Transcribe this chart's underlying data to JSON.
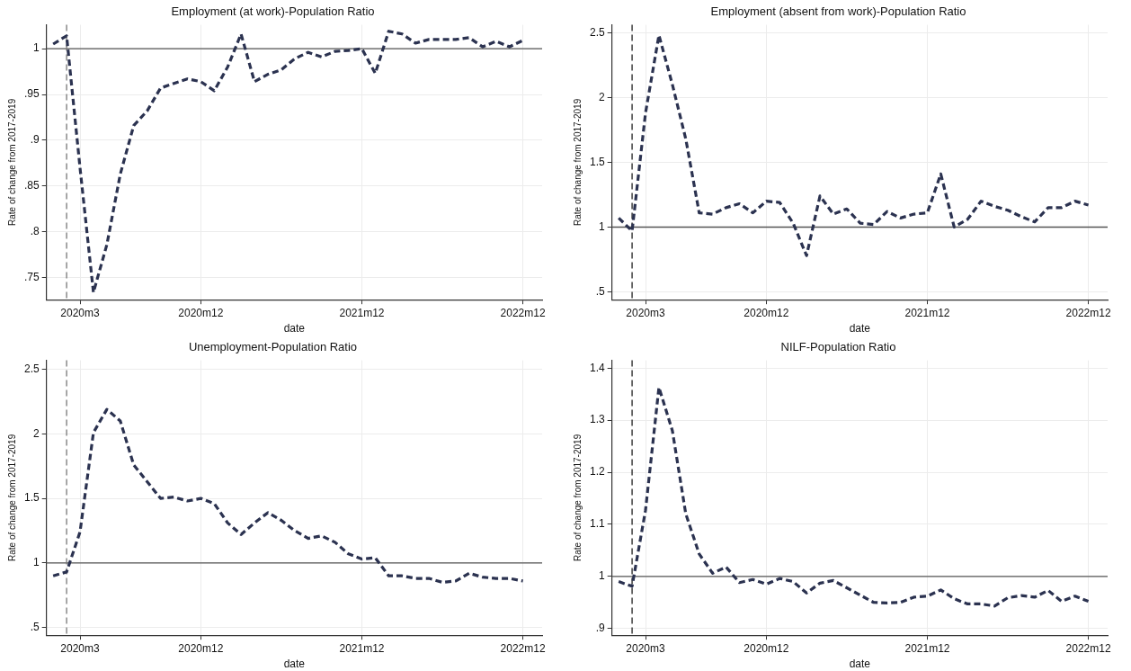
{
  "chart_data": [
    {
      "type": "line",
      "title": "Employment (at work)-Population Ratio",
      "xlabel": "date",
      "ylabel": "Rate of change from 2017-2019",
      "grid": true,
      "line_style": "dashed",
      "marker": "none",
      "x": [
        "2020-01",
        "2020-02",
        "2020-03",
        "2020-04",
        "2020-05",
        "2020-06",
        "2020-07",
        "2020-08",
        "2020-09",
        "2020-10",
        "2020-11",
        "2020-12",
        "2021-01",
        "2021-02",
        "2021-03",
        "2021-04",
        "2021-05",
        "2021-06",
        "2021-07",
        "2021-08",
        "2021-09",
        "2021-10",
        "2021-11",
        "2021-12",
        "2022-01",
        "2022-02",
        "2022-03",
        "2022-04",
        "2022-05",
        "2022-06",
        "2022-07",
        "2022-08",
        "2022-09",
        "2022-10",
        "2022-11",
        "2022-12"
      ],
      "series": [
        {
          "color": "#2b3250",
          "values": [
            1.005,
            1.014,
            0.87,
            0.734,
            0.786,
            0.863,
            0.916,
            0.932,
            0.957,
            0.962,
            0.967,
            0.964,
            0.954,
            0.98,
            1.016,
            0.964,
            0.972,
            0.977,
            0.989,
            0.996,
            0.991,
            0.997,
            0.998,
            1.0,
            0.973,
            1.019,
            1.016,
            1.006,
            1.01,
            1.01,
            1.01,
            1.012,
            1.002,
            1.008,
            1.002,
            1.009
          ]
        }
      ],
      "xlim": [
        "2019-12-16",
        "2023-01-14"
      ],
      "xticks": [
        {
          "value": "2020-03",
          "label": "2020m3"
        },
        {
          "value": "2020-12",
          "label": "2020m12"
        },
        {
          "value": "2021-12",
          "label": "2021m12"
        },
        {
          "value": "2022-12",
          "label": "2022m12"
        }
      ],
      "ylim": [
        0.726,
        1.026
      ],
      "yticks": [
        {
          "value": 0.75,
          "label": ".75"
        },
        {
          "value": 0.8,
          "label": ".8"
        },
        {
          "value": 0.85,
          "label": ".85"
        },
        {
          "value": 0.9,
          "label": ".9"
        },
        {
          "value": 0.95,
          "label": ".95"
        },
        1
      ],
      "ref_lines": [
        {
          "axis": "y",
          "value": 1,
          "color": "#555555",
          "line_style": "solid"
        },
        {
          "axis": "x",
          "value": "2020-02",
          "color": "#777777",
          "line_style": "dashed"
        }
      ]
    },
    {
      "type": "line",
      "title": "Employment (absent from work)-Population Ratio",
      "xlabel": "date",
      "ylabel": "Rate of change from 2017-2019",
      "grid": true,
      "line_style": "dashed",
      "marker": "none",
      "x": [
        "2020-01",
        "2020-02",
        "2020-03",
        "2020-04",
        "2020-05",
        "2020-06",
        "2020-07",
        "2020-08",
        "2020-09",
        "2020-10",
        "2020-11",
        "2020-12",
        "2021-01",
        "2021-02",
        "2021-03",
        "2021-04",
        "2021-05",
        "2021-06",
        "2021-07",
        "2021-08",
        "2021-09",
        "2021-10",
        "2021-11",
        "2021-12",
        "2022-01",
        "2022-02",
        "2022-03",
        "2022-04",
        "2022-05",
        "2022-06",
        "2022-07",
        "2022-08",
        "2022-09",
        "2022-10",
        "2022-11",
        "2022-12"
      ],
      "series": [
        {
          "color": "#2b3250",
          "values": [
            1.07,
            0.97,
            1.88,
            2.48,
            2.1,
            1.68,
            1.11,
            1.1,
            1.15,
            1.18,
            1.11,
            1.2,
            1.19,
            1.03,
            0.78,
            1.24,
            1.1,
            1.14,
            1.03,
            1.02,
            1.12,
            1.07,
            1.1,
            1.11,
            1.41,
            1.0,
            1.06,
            1.2,
            1.16,
            1.13,
            1.08,
            1.04,
            1.15,
            1.15,
            1.2,
            1.17
          ]
        }
      ],
      "xlim": [
        "2019-12-16",
        "2023-01-14"
      ],
      "xticks": [
        {
          "value": "2020-03",
          "label": "2020m3"
        },
        {
          "value": "2020-12",
          "label": "2020m12"
        },
        {
          "value": "2021-12",
          "label": "2021m12"
        },
        {
          "value": "2022-12",
          "label": "2022m12"
        }
      ],
      "ylim": [
        0.44,
        2.56
      ],
      "yticks": [
        {
          "value": 0.5,
          "label": ".5"
        },
        1,
        1.5,
        2,
        2.5
      ],
      "ref_lines": [
        {
          "axis": "y",
          "value": 1,
          "color": "#555555",
          "line_style": "solid"
        },
        {
          "axis": "x",
          "value": "2020-02",
          "color": "#222222",
          "line_style": "dashed"
        }
      ]
    },
    {
      "type": "line",
      "title": "Unemployment-Population Ratio",
      "xlabel": "date",
      "ylabel": "Rate of change from 2017-2019",
      "grid": true,
      "line_style": "dashed",
      "marker": "none",
      "x": [
        "2020-01",
        "2020-02",
        "2020-03",
        "2020-04",
        "2020-05",
        "2020-06",
        "2020-07",
        "2020-08",
        "2020-09",
        "2020-10",
        "2020-11",
        "2020-12",
        "2021-01",
        "2021-02",
        "2021-03",
        "2021-04",
        "2021-05",
        "2021-06",
        "2021-07",
        "2021-08",
        "2021-09",
        "2021-10",
        "2021-11",
        "2021-12",
        "2022-01",
        "2022-02",
        "2022-03",
        "2022-04",
        "2022-05",
        "2022-06",
        "2022-07",
        "2022-08",
        "2022-09",
        "2022-10",
        "2022-11",
        "2022-12"
      ],
      "series": [
        {
          "color": "#2b3250",
          "values": [
            0.9,
            0.93,
            1.24,
            2.01,
            2.19,
            2.1,
            1.76,
            1.63,
            1.5,
            1.51,
            1.48,
            1.5,
            1.46,
            1.31,
            1.22,
            1.31,
            1.39,
            1.33,
            1.25,
            1.19,
            1.21,
            1.16,
            1.07,
            1.03,
            1.04,
            0.9,
            0.9,
            0.88,
            0.88,
            0.85,
            0.86,
            0.92,
            0.89,
            0.88,
            0.88,
            0.86
          ]
        }
      ],
      "xlim": [
        "2019-12-16",
        "2023-01-14"
      ],
      "xticks": [
        {
          "value": "2020-03",
          "label": "2020m3"
        },
        {
          "value": "2020-12",
          "label": "2020m12"
        },
        {
          "value": "2021-12",
          "label": "2021m12"
        },
        {
          "value": "2022-12",
          "label": "2022m12"
        }
      ],
      "ylim": [
        0.44,
        2.57
      ],
      "yticks": [
        {
          "value": 0.5,
          "label": ".5"
        },
        1,
        1.5,
        2,
        2.5
      ],
      "ref_lines": [
        {
          "axis": "y",
          "value": 1,
          "color": "#555555",
          "line_style": "solid"
        },
        {
          "axis": "x",
          "value": "2020-02",
          "color": "#777777",
          "line_style": "dashed"
        }
      ]
    },
    {
      "type": "line",
      "title": "NILF-Population Ratio",
      "xlabel": "date",
      "ylabel": "Rate of change from 2017-2019",
      "grid": true,
      "line_style": "dashed",
      "marker": "none",
      "x": [
        "2020-01",
        "2020-02",
        "2020-03",
        "2020-04",
        "2020-05",
        "2020-06",
        "2020-07",
        "2020-08",
        "2020-09",
        "2020-10",
        "2020-11",
        "2020-12",
        "2021-01",
        "2021-02",
        "2021-03",
        "2021-04",
        "2021-05",
        "2021-06",
        "2021-07",
        "2021-08",
        "2021-09",
        "2021-10",
        "2021-11",
        "2021-12",
        "2022-01",
        "2022-02",
        "2022-03",
        "2022-04",
        "2022-05",
        "2022-06",
        "2022-07",
        "2022-08",
        "2022-09",
        "2022-10",
        "2022-11",
        "2022-12"
      ],
      "series": [
        {
          "color": "#2b3250",
          "values": [
            0.99,
            0.981,
            1.127,
            1.363,
            1.28,
            1.12,
            1.043,
            1.006,
            1.018,
            0.988,
            0.994,
            0.985,
            0.996,
            0.99,
            0.968,
            0.987,
            0.992,
            0.978,
            0.964,
            0.95,
            0.949,
            0.95,
            0.96,
            0.962,
            0.974,
            0.957,
            0.947,
            0.947,
            0.943,
            0.959,
            0.963,
            0.96,
            0.973,
            0.952,
            0.962,
            0.952
          ]
        }
      ],
      "xlim": [
        "2019-12-16",
        "2023-01-14"
      ],
      "xticks": [
        {
          "value": "2020-03",
          "label": "2020m3"
        },
        {
          "value": "2020-12",
          "label": "2020m12"
        },
        {
          "value": "2021-12",
          "label": "2021m12"
        },
        {
          "value": "2022-12",
          "label": "2022m12"
        }
      ],
      "ylim": [
        0.887,
        1.415
      ],
      "yticks": [
        {
          "value": 0.9,
          "label": ".9"
        },
        1,
        1.1,
        1.2,
        1.3,
        1.4
      ],
      "ref_lines": [
        {
          "axis": "y",
          "value": 1,
          "color": "#555555",
          "line_style": "solid"
        },
        {
          "axis": "x",
          "value": "2020-02",
          "color": "#222222",
          "line_style": "dashed"
        }
      ]
    }
  ]
}
